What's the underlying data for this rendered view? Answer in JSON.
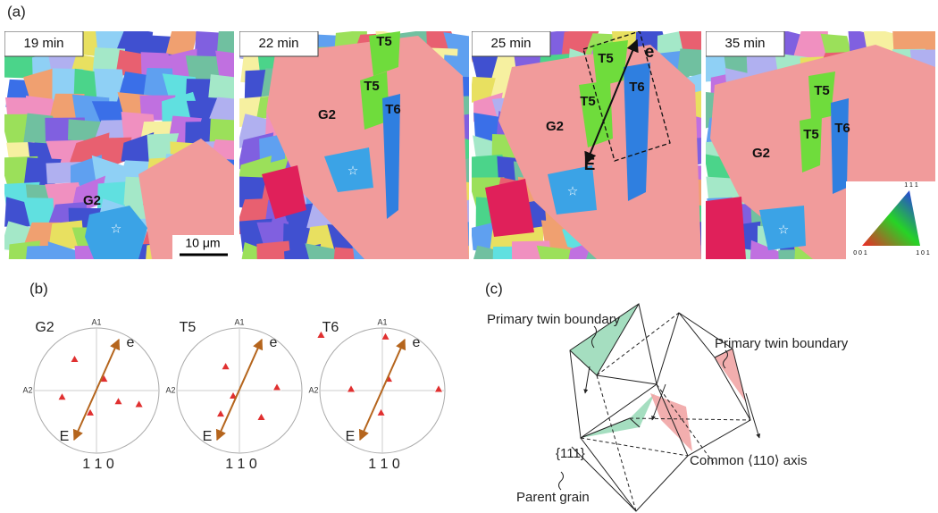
{
  "panel_a": {
    "label": "(a)",
    "maps": [
      {
        "time": "19 min",
        "labels": [
          "G2"
        ]
      },
      {
        "time": "22 min",
        "labels": [
          "T5",
          "T5",
          "G2",
          "T6"
        ]
      },
      {
        "time": "25 min",
        "labels": [
          "T5",
          "T5",
          "T6",
          "G2",
          "e",
          "E"
        ]
      },
      {
        "time": "35 min",
        "labels": [
          "T5",
          "T5",
          "T6",
          "G2"
        ]
      }
    ],
    "scale_bar": "10 μm",
    "ipf_key": [
      "1 1 1",
      "0 0 1",
      "1 0 1"
    ]
  },
  "panel_b": {
    "label": "(b)",
    "pole_figures": [
      {
        "name": "G2",
        "axes": [
          "A1",
          "A2"
        ],
        "ends": [
          "e",
          "E"
        ],
        "direction": "1 1 0"
      },
      {
        "name": "T5",
        "axes": [
          "A1",
          "A2"
        ],
        "ends": [
          "e",
          "E"
        ],
        "direction": "1 1 0"
      },
      {
        "name": "T6",
        "axes": [
          "A1",
          "A2"
        ],
        "ends": [
          "e",
          "E"
        ],
        "direction": "1 1 0"
      }
    ]
  },
  "panel_c": {
    "label": "(c)",
    "labels": [
      "Primary twin boundary",
      "Primary twin boundary",
      "{111}",
      "Common ⟨110⟩ axis",
      "Parent grain"
    ]
  }
}
